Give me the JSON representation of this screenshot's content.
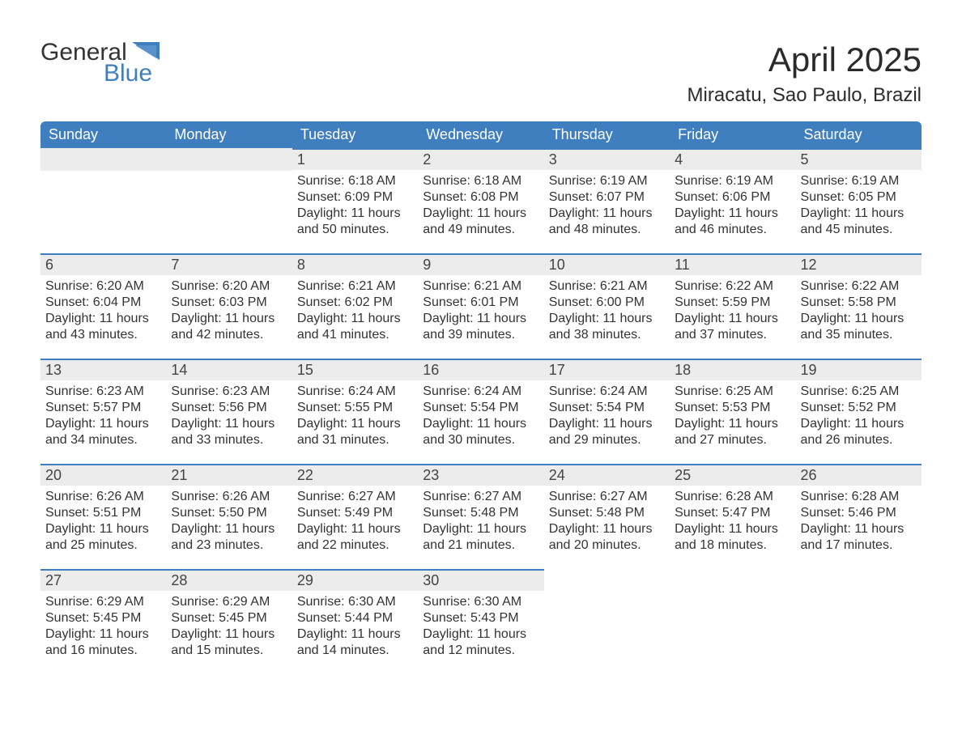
{
  "logo": {
    "word1": "General",
    "word2": "Blue"
  },
  "header": {
    "month_title": "April 2025",
    "location": "Miracatu, Sao Paulo, Brazil"
  },
  "colors": {
    "brand_blue": "#3f7ebf",
    "header_bg": "#3f7ebf",
    "header_text": "#ffffff",
    "daynum_bg": "#ececec",
    "daynum_border": "#3f7ebf",
    "text": "#333333",
    "background": "#ffffff"
  },
  "day_names": [
    "Sunday",
    "Monday",
    "Tuesday",
    "Wednesday",
    "Thursday",
    "Friday",
    "Saturday"
  ],
  "weeks": [
    [
      {
        "empty": true
      },
      {
        "empty": true
      },
      {
        "num": "1",
        "sunrise": "Sunrise: 6:18 AM",
        "sunset": "Sunset: 6:09 PM",
        "daylight": "Daylight: 11 hours and 50 minutes."
      },
      {
        "num": "2",
        "sunrise": "Sunrise: 6:18 AM",
        "sunset": "Sunset: 6:08 PM",
        "daylight": "Daylight: 11 hours and 49 minutes."
      },
      {
        "num": "3",
        "sunrise": "Sunrise: 6:19 AM",
        "sunset": "Sunset: 6:07 PM",
        "daylight": "Daylight: 11 hours and 48 minutes."
      },
      {
        "num": "4",
        "sunrise": "Sunrise: 6:19 AM",
        "sunset": "Sunset: 6:06 PM",
        "daylight": "Daylight: 11 hours and 46 minutes."
      },
      {
        "num": "5",
        "sunrise": "Sunrise: 6:19 AM",
        "sunset": "Sunset: 6:05 PM",
        "daylight": "Daylight: 11 hours and 45 minutes."
      }
    ],
    [
      {
        "num": "6",
        "sunrise": "Sunrise: 6:20 AM",
        "sunset": "Sunset: 6:04 PM",
        "daylight": "Daylight: 11 hours and 43 minutes."
      },
      {
        "num": "7",
        "sunrise": "Sunrise: 6:20 AM",
        "sunset": "Sunset: 6:03 PM",
        "daylight": "Daylight: 11 hours and 42 minutes."
      },
      {
        "num": "8",
        "sunrise": "Sunrise: 6:21 AM",
        "sunset": "Sunset: 6:02 PM",
        "daylight": "Daylight: 11 hours and 41 minutes."
      },
      {
        "num": "9",
        "sunrise": "Sunrise: 6:21 AM",
        "sunset": "Sunset: 6:01 PM",
        "daylight": "Daylight: 11 hours and 39 minutes."
      },
      {
        "num": "10",
        "sunrise": "Sunrise: 6:21 AM",
        "sunset": "Sunset: 6:00 PM",
        "daylight": "Daylight: 11 hours and 38 minutes."
      },
      {
        "num": "11",
        "sunrise": "Sunrise: 6:22 AM",
        "sunset": "Sunset: 5:59 PM",
        "daylight": "Daylight: 11 hours and 37 minutes."
      },
      {
        "num": "12",
        "sunrise": "Sunrise: 6:22 AM",
        "sunset": "Sunset: 5:58 PM",
        "daylight": "Daylight: 11 hours and 35 minutes."
      }
    ],
    [
      {
        "num": "13",
        "sunrise": "Sunrise: 6:23 AM",
        "sunset": "Sunset: 5:57 PM",
        "daylight": "Daylight: 11 hours and 34 minutes."
      },
      {
        "num": "14",
        "sunrise": "Sunrise: 6:23 AM",
        "sunset": "Sunset: 5:56 PM",
        "daylight": "Daylight: 11 hours and 33 minutes."
      },
      {
        "num": "15",
        "sunrise": "Sunrise: 6:24 AM",
        "sunset": "Sunset: 5:55 PM",
        "daylight": "Daylight: 11 hours and 31 minutes."
      },
      {
        "num": "16",
        "sunrise": "Sunrise: 6:24 AM",
        "sunset": "Sunset: 5:54 PM",
        "daylight": "Daylight: 11 hours and 30 minutes."
      },
      {
        "num": "17",
        "sunrise": "Sunrise: 6:24 AM",
        "sunset": "Sunset: 5:54 PM",
        "daylight": "Daylight: 11 hours and 29 minutes."
      },
      {
        "num": "18",
        "sunrise": "Sunrise: 6:25 AM",
        "sunset": "Sunset: 5:53 PM",
        "daylight": "Daylight: 11 hours and 27 minutes."
      },
      {
        "num": "19",
        "sunrise": "Sunrise: 6:25 AM",
        "sunset": "Sunset: 5:52 PM",
        "daylight": "Daylight: 11 hours and 26 minutes."
      }
    ],
    [
      {
        "num": "20",
        "sunrise": "Sunrise: 6:26 AM",
        "sunset": "Sunset: 5:51 PM",
        "daylight": "Daylight: 11 hours and 25 minutes."
      },
      {
        "num": "21",
        "sunrise": "Sunrise: 6:26 AM",
        "sunset": "Sunset: 5:50 PM",
        "daylight": "Daylight: 11 hours and 23 minutes."
      },
      {
        "num": "22",
        "sunrise": "Sunrise: 6:27 AM",
        "sunset": "Sunset: 5:49 PM",
        "daylight": "Daylight: 11 hours and 22 minutes."
      },
      {
        "num": "23",
        "sunrise": "Sunrise: 6:27 AM",
        "sunset": "Sunset: 5:48 PM",
        "daylight": "Daylight: 11 hours and 21 minutes."
      },
      {
        "num": "24",
        "sunrise": "Sunrise: 6:27 AM",
        "sunset": "Sunset: 5:48 PM",
        "daylight": "Daylight: 11 hours and 20 minutes."
      },
      {
        "num": "25",
        "sunrise": "Sunrise: 6:28 AM",
        "sunset": "Sunset: 5:47 PM",
        "daylight": "Daylight: 11 hours and 18 minutes."
      },
      {
        "num": "26",
        "sunrise": "Sunrise: 6:28 AM",
        "sunset": "Sunset: 5:46 PM",
        "daylight": "Daylight: 11 hours and 17 minutes."
      }
    ],
    [
      {
        "num": "27",
        "sunrise": "Sunrise: 6:29 AM",
        "sunset": "Sunset: 5:45 PM",
        "daylight": "Daylight: 11 hours and 16 minutes."
      },
      {
        "num": "28",
        "sunrise": "Sunrise: 6:29 AM",
        "sunset": "Sunset: 5:45 PM",
        "daylight": "Daylight: 11 hours and 15 minutes."
      },
      {
        "num": "29",
        "sunrise": "Sunrise: 6:30 AM",
        "sunset": "Sunset: 5:44 PM",
        "daylight": "Daylight: 11 hours and 14 minutes."
      },
      {
        "num": "30",
        "sunrise": "Sunrise: 6:30 AM",
        "sunset": "Sunset: 5:43 PM",
        "daylight": "Daylight: 11 hours and 12 minutes."
      },
      {
        "empty": true,
        "blank": true
      },
      {
        "empty": true,
        "blank": true
      },
      {
        "empty": true,
        "blank": true
      }
    ]
  ]
}
